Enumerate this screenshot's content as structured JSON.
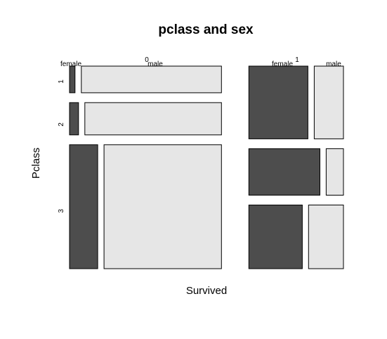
{
  "chart_data": {
    "type": "mosaic",
    "title": "pclass and sex",
    "xlabel": "Survived",
    "ylabel": "Pclass",
    "survived_levels": [
      "0",
      "1"
    ],
    "pclass_levels": [
      "1",
      "2",
      "3"
    ],
    "sex_levels": [
      "female",
      "male"
    ],
    "counts": {
      "0": {
        "1": {
          "female": 3,
          "male": 77
        },
        "2": {
          "female": 6,
          "male": 91
        },
        "3": {
          "female": 72,
          "male": 300
        }
      },
      "1": {
        "1": {
          "female": 91,
          "male": 45
        },
        "2": {
          "female": 70,
          "male": 17
        },
        "3": {
          "female": 72,
          "male": 47
        }
      }
    },
    "colors": {
      "female": "#4d4d4d",
      "male": "#e6e6e6"
    }
  }
}
